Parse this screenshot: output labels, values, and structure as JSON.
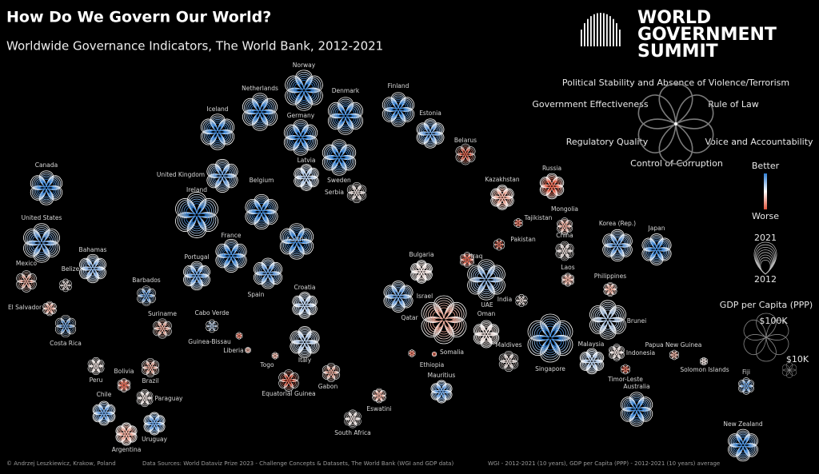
{
  "chart_data": {
    "type": "flower",
    "title": "How Do We Govern Our World?",
    "subtitle": "Worldwide Governance Indicators, The World Bank, 2012-2021",
    "brand": [
      "WORLD",
      "GOVERNMENT",
      "SUMMIT"
    ],
    "legend": {
      "indicators": [
        "Political Stability and Absence of Violence/Terrorism",
        "Rule of Law",
        "Voice and Accountability",
        "Control of Corruption",
        "Regulatory Quality",
        "Government Effectiveness"
      ],
      "better": "Better",
      "worse": "Worse",
      "better_color": "#2f7fd6",
      "worse_color": "#e0553c",
      "years": [
        "2021",
        "2012"
      ],
      "size_title": "GDP per Capita (PPP)",
      "size_ticks": [
        {
          "value": 100000,
          "label": "$100K"
        },
        {
          "value": 10000,
          "label": "$10K"
        }
      ]
    },
    "countries": [
      {
        "name": "Canada",
        "gdp": 50000,
        "color": "#2f7fd6"
      },
      {
        "name": "United States",
        "gdp": 65000,
        "color": "#5b95d8"
      },
      {
        "name": "Mexico",
        "gdp": 20000,
        "color": "#e8a08e"
      },
      {
        "name": "Belize",
        "gdp": 7000,
        "color": "#e6d6d2"
      },
      {
        "name": "Bahamas",
        "gdp": 35000,
        "color": "#7fa9dc"
      },
      {
        "name": "Barbados",
        "gdp": 17000,
        "color": "#5b95d8"
      },
      {
        "name": "El Salvador",
        "gdp": 9000,
        "color": "#e8a08e"
      },
      {
        "name": "Costa Rica",
        "gdp": 21000,
        "color": "#5b95d8"
      },
      {
        "name": "Suriname",
        "gdp": 17000,
        "color": "#e8a08e"
      },
      {
        "name": "Peru",
        "gdp": 13000,
        "color": "#e6d6d2"
      },
      {
        "name": "Bolivia",
        "gdp": 8000,
        "color": "#e0553c"
      },
      {
        "name": "Brazil",
        "gdp": 15000,
        "color": "#e8a08e"
      },
      {
        "name": "Paraguay",
        "gdp": 13000,
        "color": "#e6d6d2"
      },
      {
        "name": "Chile",
        "gdp": 25000,
        "color": "#5b95d8"
      },
      {
        "name": "Uruguay",
        "gdp": 22000,
        "color": "#5b95d8"
      },
      {
        "name": "Argentina",
        "gdp": 22000,
        "color": "#e8a08e"
      },
      {
        "name": "Iceland",
        "gdp": 55000,
        "color": "#2f7fd6"
      },
      {
        "name": "Netherlands",
        "gdp": 60000,
        "color": "#2f7fd6"
      },
      {
        "name": "Norway",
        "gdp": 70000,
        "color": "#2f7fd6"
      },
      {
        "name": "Denmark",
        "gdp": 60000,
        "color": "#2f7fd6"
      },
      {
        "name": "Finland",
        "gdp": 50000,
        "color": "#2f7fd6"
      },
      {
        "name": "Estonia",
        "gdp": 37000,
        "color": "#5b95d8"
      },
      {
        "name": "Germany",
        "gdp": 55000,
        "color": "#2f7fd6"
      },
      {
        "name": "Belarus",
        "gdp": 19000,
        "color": "#e0553c"
      },
      {
        "name": "Latvia",
        "gdp": 30000,
        "color": "#a9c3e3"
      },
      {
        "name": "United Kingdom",
        "gdp": 47000,
        "color": "#5b95d8"
      },
      {
        "name": "Belgium",
        "gdp": 52000,
        "color": "#2f7fd6"
      },
      {
        "name": "Ireland",
        "gdp": 90000,
        "color": "#2f7fd6"
      },
      {
        "name": "Sweden",
        "gdp": 55000,
        "color": "#2f7fd6"
      },
      {
        "name": "Serbia",
        "gdp": 18000,
        "color": "#e6d6d2"
      },
      {
        "name": "Kazakhstan",
        "gdp": 26000,
        "color": "#e8a08e"
      },
      {
        "name": "Russia",
        "gdp": 28000,
        "color": "#e0553c"
      },
      {
        "name": "Mongolia",
        "gdp": 12000,
        "color": "#e8a08e"
      },
      {
        "name": "Tajikistan",
        "gdp": 3500,
        "color": "#e0553c"
      },
      {
        "name": "China",
        "gdp": 16000,
        "color": "#e6d6d2"
      },
      {
        "name": "Pakistan",
        "gdp": 5500,
        "color": "#e0553c"
      },
      {
        "name": "France",
        "gdp": 47000,
        "color": "#2f7fd6"
      },
      {
        "name": "Austria",
        "gdp": 55000,
        "color": "#2f7fd6"
      },
      {
        "name": "Portugal",
        "gdp": 35000,
        "color": "#5b95d8"
      },
      {
        "name": "Spain",
        "gdp": 40000,
        "color": "#5b95d8"
      },
      {
        "name": "Bulgaria",
        "gdp": 23000,
        "color": "#e6d6d2"
      },
      {
        "name": "Iraq",
        "gdp": 10000,
        "color": "#e0553c"
      },
      {
        "name": "Laos",
        "gdp": 7500,
        "color": "#e8a08e"
      },
      {
        "name": "Philippines",
        "gdp": 8500,
        "color": "#e8a08e"
      },
      {
        "name": "Korea (Rep.)",
        "gdp": 43000,
        "color": "#5b95d8"
      },
      {
        "name": "Japan",
        "gdp": 42000,
        "color": "#2f7fd6"
      },
      {
        "name": "Croatia",
        "gdp": 30000,
        "color": "#a9c3e3"
      },
      {
        "name": "Israel",
        "gdp": 42000,
        "color": "#5b95d8"
      },
      {
        "name": "Cabo Verde",
        "gdp": 7000,
        "color": "#a9c3e3"
      },
      {
        "name": "India",
        "gdp": 6500,
        "color": "#e6d6d2"
      },
      {
        "name": "UAE",
        "gdp": 70000,
        "color": "#7fa9dc"
      },
      {
        "name": "Oman",
        "gdp": 32000,
        "color": "#e6d6d2"
      },
      {
        "name": "Qatar",
        "gdp": 100000,
        "color": "#e8a08e"
      },
      {
        "name": "Brunei",
        "gdp": 65000,
        "color": "#a9c3e3"
      },
      {
        "name": "Guinea-Bissau",
        "gdp": 2000,
        "color": "#e0553c"
      },
      {
        "name": "Liberia",
        "gdp": 1500,
        "color": "#e8a08e"
      },
      {
        "name": "Togo",
        "gdp": 2000,
        "color": "#e8a08e"
      },
      {
        "name": "Italy",
        "gdp": 42000,
        "color": "#a9c3e3"
      },
      {
        "name": "Somalia",
        "gdp": 1000,
        "color": "#e0553c"
      },
      {
        "name": "Malaysia",
        "gdp": 28000,
        "color": "#a9c3e3"
      },
      {
        "name": "Maldives",
        "gdp": 18000,
        "color": "#e6d6d2"
      },
      {
        "name": "Singapore",
        "gdp": 100000,
        "color": "#2f7fd6"
      },
      {
        "name": "Indonesia",
        "gdp": 12000,
        "color": "#e6d6d2"
      },
      {
        "name": "Papua New Guinea",
        "gdp": 4000,
        "color": "#e8a08e"
      },
      {
        "name": "Solomon Islands",
        "gdp": 2600,
        "color": "#e6d6d2"
      },
      {
        "name": "Timor-Leste",
        "gdp": 4000,
        "color": "#e0553c"
      },
      {
        "name": "Australia",
        "gdp": 50000,
        "color": "#2f7fd6"
      },
      {
        "name": "Ethiopia",
        "gdp": 2200,
        "color": "#e0553c"
      },
      {
        "name": "Mauritius",
        "gdp": 22000,
        "color": "#5b95d8"
      },
      {
        "name": "Equatorial Guinea",
        "gdp": 20000,
        "color": "#e0553c"
      },
      {
        "name": "Gabon",
        "gdp": 15000,
        "color": "#e8a08e"
      },
      {
        "name": "Eswatini",
        "gdp": 9000,
        "color": "#e8a08e"
      },
      {
        "name": "South Africa",
        "gdp": 14000,
        "color": "#e6d6d2"
      },
      {
        "name": "Fiji",
        "gdp": 12000,
        "color": "#5b95d8"
      },
      {
        "name": "New Zealand",
        "gdp": 44000,
        "color": "#2f7fd6"
      }
    ],
    "footer": [
      "© Andrzej Leszkiewicz, Krakow, Poland",
      "Data Sources: World Dataviz Prize 2023 - Challenge Concepts & Datasets, The World Bank (WGI and GDP data)",
      "WGI - 2012-2021 (10 years), GDP per Capita (PPP) - 2012-2021 (10 years) average"
    ]
  }
}
